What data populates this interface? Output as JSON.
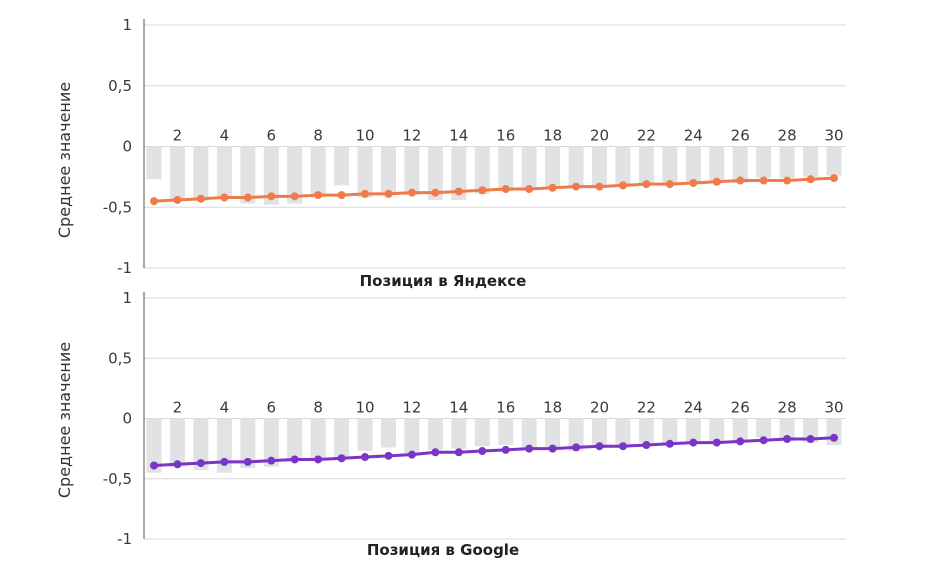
{
  "chart_data": [
    {
      "type": "bar+line",
      "title": "",
      "xlabel": "Позиция в Яндексе",
      "ylabel": "Среднее значение",
      "ylim": [
        -1,
        1
      ],
      "yticks": [
        1,
        0.5,
        0,
        -0.5,
        -1
      ],
      "ytick_labels": [
        "1",
        "0,5",
        "0",
        "-0,5",
        "-1"
      ],
      "x": [
        1,
        2,
        3,
        4,
        5,
        6,
        7,
        8,
        9,
        10,
        11,
        12,
        13,
        14,
        15,
        16,
        17,
        18,
        19,
        20,
        21,
        22,
        23,
        24,
        25,
        26,
        27,
        28,
        29,
        30
      ],
      "xtick_labels": [
        "2",
        "4",
        "6",
        "8",
        "10",
        "12",
        "14",
        "16",
        "18",
        "20",
        "22",
        "24",
        "26",
        "28",
        "30"
      ],
      "grid": true,
      "bar_values": [
        -0.27,
        -0.45,
        -0.45,
        -0.43,
        -0.47,
        -0.48,
        -0.47,
        -0.42,
        -0.32,
        -0.42,
        -0.4,
        -0.4,
        -0.44,
        -0.44,
        -0.39,
        -0.37,
        -0.35,
        -0.34,
        -0.34,
        -0.33,
        -0.32,
        -0.3,
        -0.3,
        -0.3,
        -0.29,
        -0.3,
        -0.26,
        -0.26,
        -0.25,
        -0.24
      ],
      "line_values": [
        -0.45,
        -0.44,
        -0.43,
        -0.42,
        -0.42,
        -0.41,
        -0.41,
        -0.4,
        -0.4,
        -0.39,
        -0.39,
        -0.38,
        -0.38,
        -0.37,
        -0.36,
        -0.35,
        -0.35,
        -0.34,
        -0.33,
        -0.33,
        -0.32,
        -0.31,
        -0.31,
        -0.3,
        -0.29,
        -0.28,
        -0.28,
        -0.28,
        -0.27,
        -0.26
      ],
      "line_color": "#f07b4a",
      "bar_color": "#e0e2e3"
    },
    {
      "type": "bar+line",
      "title": "",
      "xlabel": "Позиция в Google",
      "ylabel": "Среднее значение",
      "ylim": [
        -1,
        1
      ],
      "yticks": [
        1,
        0.5,
        0,
        -0.5,
        -1
      ],
      "ytick_labels": [
        "1",
        "0,5",
        "0",
        "-0,5",
        "-1"
      ],
      "x": [
        1,
        2,
        3,
        4,
        5,
        6,
        7,
        8,
        9,
        10,
        11,
        12,
        13,
        14,
        15,
        16,
        17,
        18,
        19,
        20,
        21,
        22,
        23,
        24,
        25,
        26,
        27,
        28,
        29,
        30
      ],
      "xtick_labels": [
        "2",
        "4",
        "6",
        "8",
        "10",
        "12",
        "14",
        "16",
        "18",
        "20",
        "22",
        "24",
        "26",
        "28",
        "30"
      ],
      "grid": true,
      "bar_values": [
        -0.45,
        -0.4,
        -0.43,
        -0.45,
        -0.41,
        -0.4,
        -0.35,
        -0.33,
        -0.34,
        -0.27,
        -0.24,
        -0.3,
        -0.26,
        -0.25,
        -0.23,
        -0.22,
        -0.25,
        -0.24,
        -0.27,
        -0.22,
        -0.22,
        -0.2,
        -0.21,
        -0.2,
        -0.2,
        -0.18,
        -0.16,
        -0.19,
        -0.2,
        -0.22
      ],
      "line_values": [
        -0.39,
        -0.38,
        -0.37,
        -0.36,
        -0.36,
        -0.35,
        -0.34,
        -0.34,
        -0.33,
        -0.32,
        -0.31,
        -0.3,
        -0.28,
        -0.28,
        -0.27,
        -0.26,
        -0.25,
        -0.25,
        -0.24,
        -0.23,
        -0.23,
        -0.22,
        -0.21,
        -0.2,
        -0.2,
        -0.19,
        -0.18,
        -0.17,
        -0.17,
        -0.16
      ],
      "line_color": "#7b35c6",
      "bar_color": "#e0e2e3"
    }
  ]
}
